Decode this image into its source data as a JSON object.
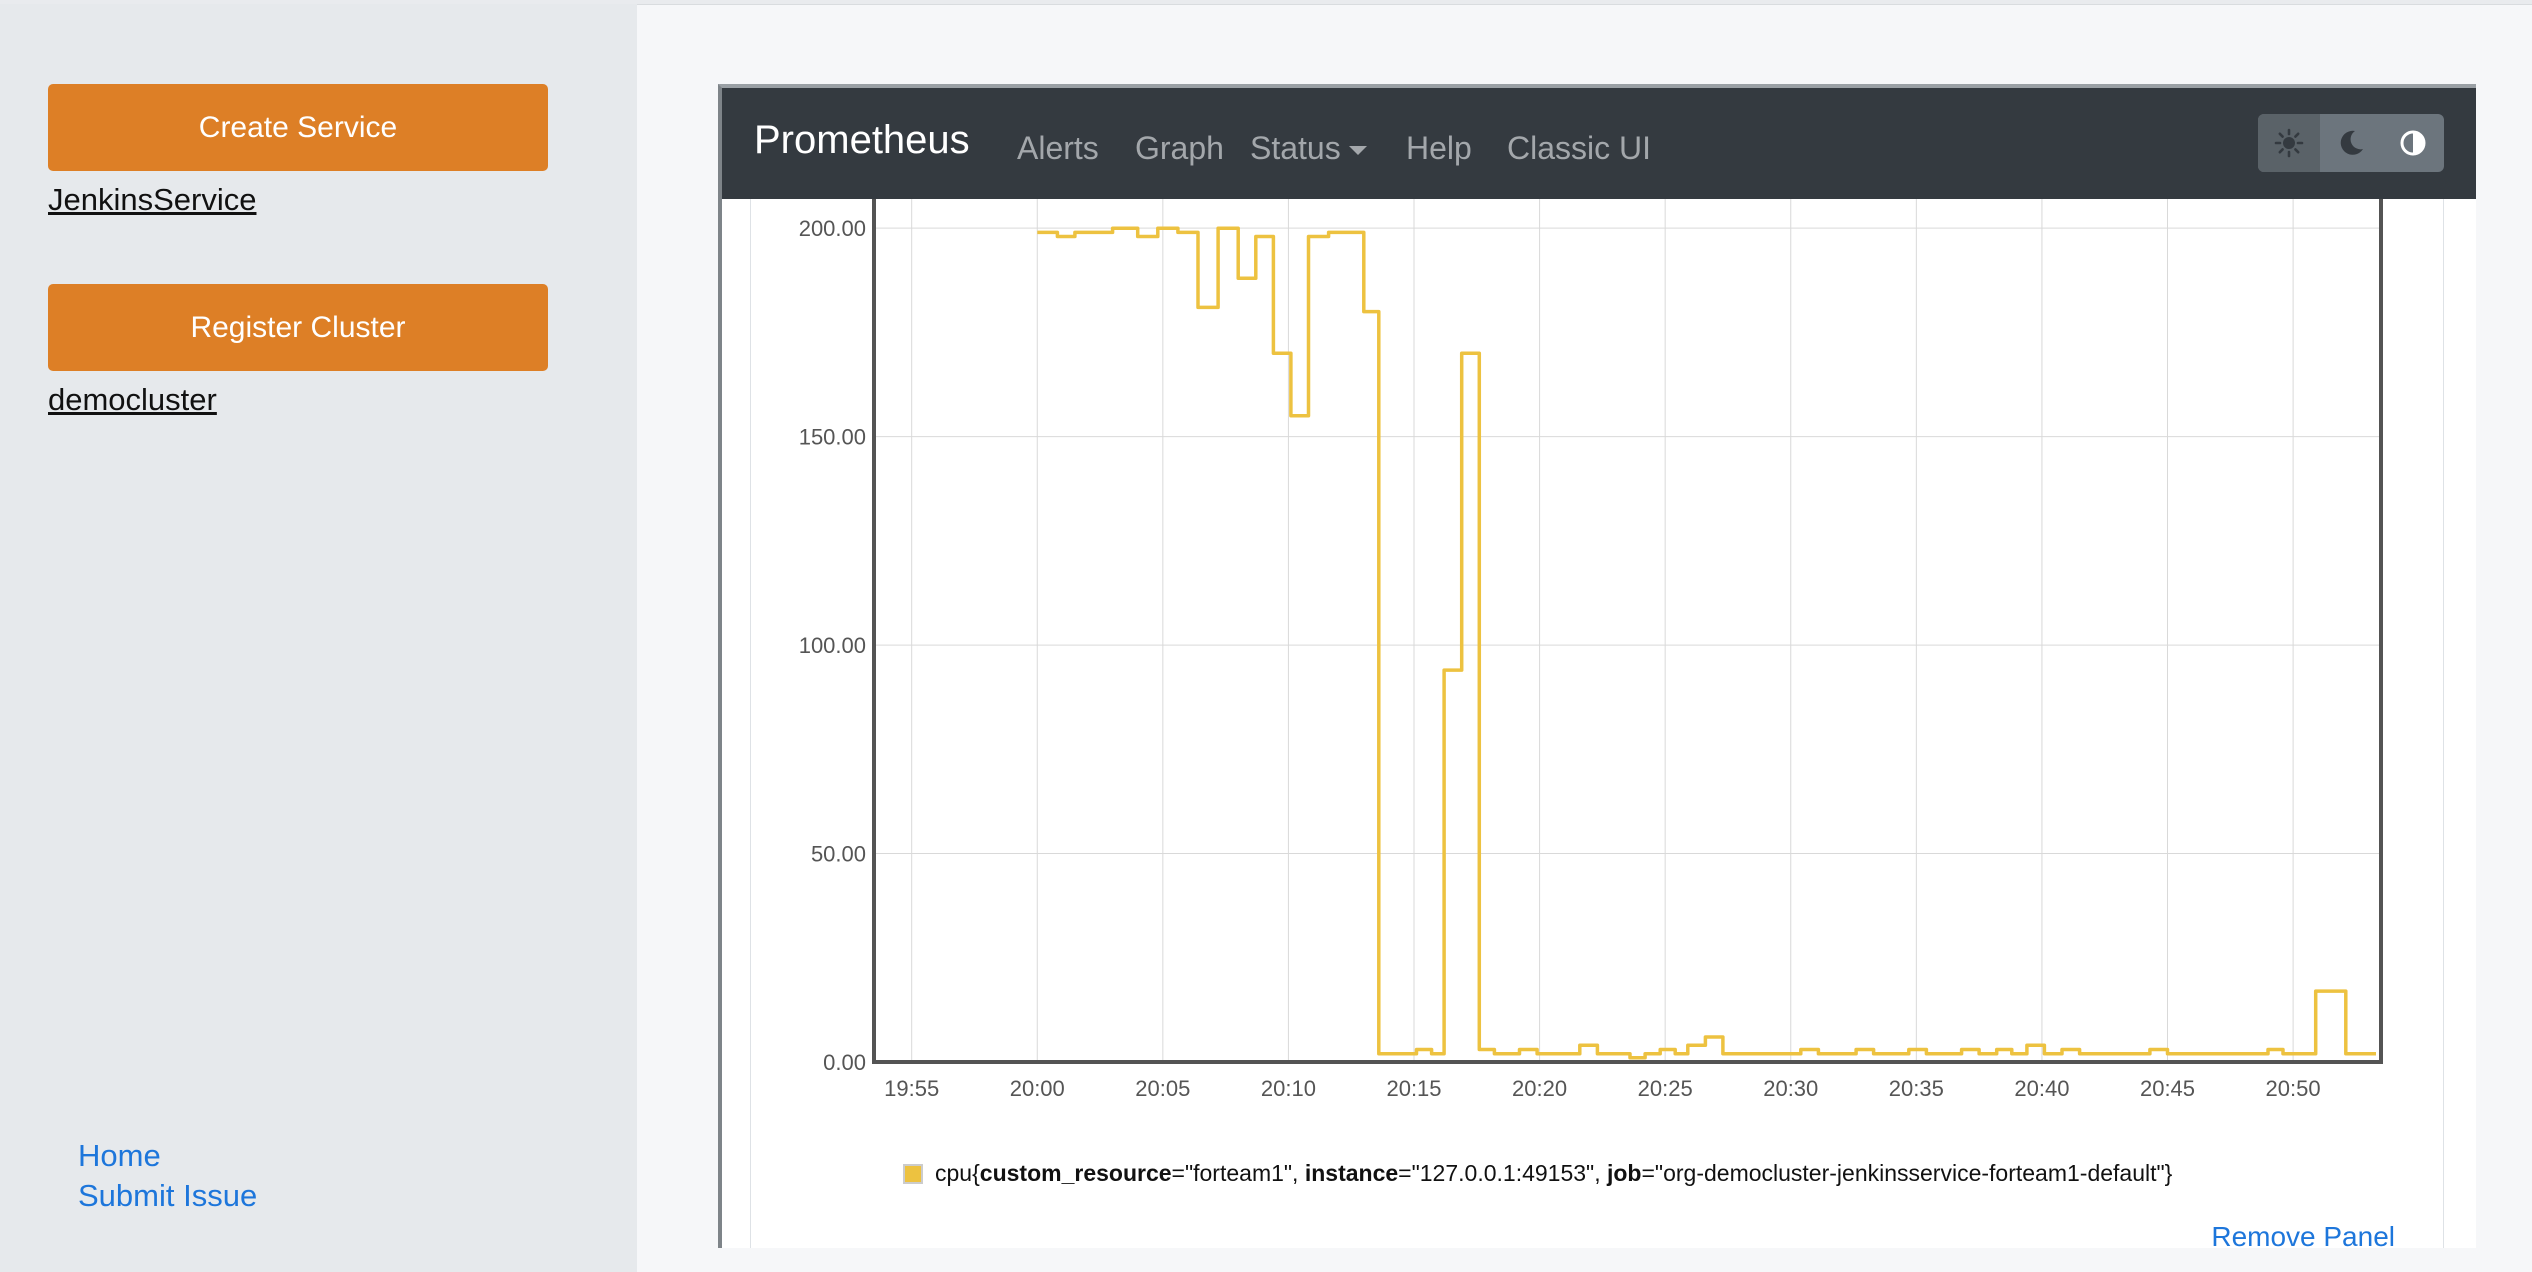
{
  "sidebar": {
    "create_service_label": "Create Service",
    "service_link": "JenkinsService",
    "register_cluster_label": "Register Cluster",
    "cluster_link": "democluster",
    "footer_links": [
      "Home",
      "Submit Issue"
    ]
  },
  "prometheus": {
    "brand": "Prometheus",
    "nav": [
      "Alerts",
      "Graph",
      "Status",
      "Help",
      "Classic UI"
    ],
    "theme_buttons": [
      "sun-icon",
      "moon-icon",
      "contrast-icon"
    ],
    "remove_panel_label": "Remove Panel"
  },
  "legend": {
    "metric": "cpu",
    "open_brace": "{",
    "label1_key": "custom_resource",
    "label1_val": "=\"forteam1\", ",
    "label2_key": "instance",
    "label2_val": "=\"127.0.0.1:49153\", ",
    "label3_key": "job",
    "label3_val": "=\"org-democluster-jenkinsservice-forteam1-default\"",
    "close_brace": "}"
  },
  "colors": {
    "series": "#edc240",
    "accent": "#dd7f26",
    "link": "#1d76db",
    "navbar": "#343a40"
  },
  "chart_data": {
    "type": "line",
    "title": "",
    "xlabel": "",
    "ylabel": "",
    "x_tick_labels": [
      "19:55",
      "20:00",
      "20:05",
      "20:10",
      "20:15",
      "20:20",
      "20:25",
      "20:30",
      "20:35",
      "20:40",
      "20:45",
      "20:50"
    ],
    "x_tick_minutes": [
      55,
      60,
      65,
      70,
      75,
      80,
      85,
      90,
      95,
      100,
      105,
      110
    ],
    "y_tick_labels": [
      "0.00",
      "50.00",
      "100.00",
      "150.00",
      "200.00"
    ],
    "y_tick_values": [
      0,
      50,
      100,
      150,
      200
    ],
    "xlim_minutes": [
      53.5,
      113.5
    ],
    "ylim": [
      0,
      207
    ],
    "series": [
      {
        "name": "cpu",
        "x_minutes": [
          60.0,
          60.8,
          61.5,
          62.2,
          63.0,
          64.0,
          64.8,
          65.6,
          66.4,
          67.2,
          68.0,
          68.7,
          69.4,
          70.1,
          70.8,
          71.6,
          72.4,
          73.0,
          73.6,
          74.3,
          75.1,
          75.7,
          76.2,
          76.9,
          77.6,
          78.2,
          78.6,
          79.2,
          79.9,
          80.4,
          81.1,
          81.6,
          82.3,
          83.0,
          83.6,
          84.2,
          84.8,
          85.4,
          85.9,
          86.6,
          87.3,
          88.0,
          88.8,
          89.6,
          90.4,
          91.1,
          91.8,
          92.6,
          93.3,
          94.0,
          94.7,
          95.4,
          96.1,
          96.8,
          97.5,
          98.2,
          98.8,
          99.4,
          100.1,
          100.8,
          101.5,
          102.2,
          102.9,
          103.6,
          104.3,
          105.0,
          105.6,
          106.2,
          106.9,
          107.6,
          108.3,
          109.0,
          109.6,
          110.3,
          110.9,
          111.5,
          112.1,
          112.7,
          113.3
        ],
        "values": [
          199,
          198,
          199,
          199,
          200,
          198,
          200,
          199,
          181,
          200,
          188,
          198,
          170,
          155,
          198,
          199,
          199,
          180,
          2,
          2,
          3,
          2,
          94,
          170,
          3,
          2,
          2,
          3,
          2,
          2,
          2,
          4,
          2,
          2,
          1,
          2,
          3,
          2,
          4,
          6,
          2,
          2,
          2,
          2,
          3,
          2,
          2,
          3,
          2,
          2,
          3,
          2,
          2,
          3,
          2,
          3,
          2,
          4,
          2,
          3,
          2,
          2,
          2,
          2,
          3,
          2,
          2,
          2,
          2,
          2,
          2,
          3,
          2,
          2,
          17,
          17,
          2,
          2,
          2
        ]
      }
    ]
  }
}
